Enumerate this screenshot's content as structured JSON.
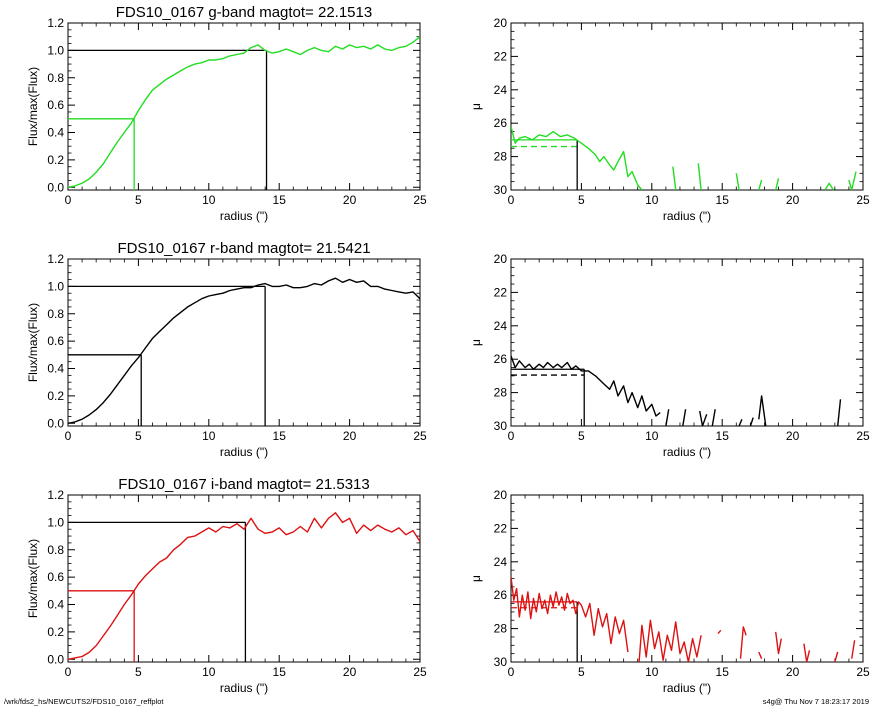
{
  "footer": {
    "path": "/wrk/fds2_hs/NEWCUTS2/FDS10_0167_reffplot",
    "stamp": "s4g@  Thu Nov  7 18:23:17 2019"
  },
  "chart_data": [
    {
      "type": "line",
      "panel": "g-growth",
      "title": "FDS10_0167 g-band  magtot=      22.1513",
      "xlabel": "radius (\")",
      "ylabel": "Flux/max(Flux)",
      "xlim": [
        0,
        25
      ],
      "ylim": [
        -0.02,
        1.2
      ],
      "xticks": [
        0,
        5,
        10,
        15,
        20,
        25
      ],
      "yticks": [
        0.0,
        0.2,
        0.4,
        0.6,
        0.8,
        1.0,
        1.2
      ],
      "ytick_labels": [
        "0.0",
        "0.2",
        "0.4",
        "0.6",
        "0.8",
        "1.0",
        "1.2"
      ],
      "color": "#22dd22",
      "r_half": 4.7,
      "r_total": 14.1,
      "series": [
        {
          "x": [
            0,
            0.5,
            1,
            1.5,
            2,
            2.5,
            3,
            3.5,
            4,
            4.5,
            5,
            5.5,
            6,
            6.5,
            7,
            7.5,
            8,
            8.5,
            9,
            9.5,
            10,
            10.5,
            11,
            11.5,
            12,
            12.5,
            13,
            13.5,
            14,
            14.5,
            15,
            15.5,
            16,
            16.5,
            17,
            17.5,
            18,
            18.5,
            19,
            19.5,
            20,
            20.5,
            21,
            21.5,
            22,
            22.5,
            23,
            23.5,
            24,
            24.5,
            25
          ],
          "y": [
            0,
            0.01,
            0.03,
            0.06,
            0.11,
            0.17,
            0.25,
            0.33,
            0.4,
            0.47,
            0.56,
            0.64,
            0.71,
            0.75,
            0.79,
            0.82,
            0.85,
            0.88,
            0.9,
            0.91,
            0.93,
            0.93,
            0.94,
            0.96,
            0.97,
            0.98,
            1.02,
            1.04,
            1.0,
            0.98,
            0.99,
            1.01,
            0.99,
            0.97,
            1.0,
            1.02,
            1.0,
            0.99,
            1.03,
            1.01,
            1.04,
            1.02,
            1.03,
            1.01,
            1.04,
            1.01,
            1.0,
            1.02,
            1.03,
            1.06,
            1.1
          ]
        }
      ]
    },
    {
      "type": "line",
      "panel": "g-profile",
      "xlabel": "radius (\")",
      "ylabel": "μ",
      "xlim": [
        0,
        25
      ],
      "ylim": [
        30,
        20
      ],
      "xticks": [
        0,
        5,
        10,
        15,
        20,
        25
      ],
      "yticks": [
        20,
        22,
        24,
        26,
        28,
        30
      ],
      "color": "#22dd22",
      "mu_e": 27.4,
      "mu_mean": 27.0,
      "r_e": 4.7,
      "series": [
        {
          "x": [
            0,
            0.3,
            0.6,
            1,
            1.5,
            2,
            2.5,
            3,
            3.5,
            4,
            4.5,
            5,
            5.5,
            6,
            6.3,
            6.6,
            7,
            7.3,
            7.6,
            8,
            8.3,
            8.6,
            9,
            9.3
          ],
          "y": [
            26.2,
            27.2,
            26.9,
            26.8,
            27.0,
            26.7,
            26.8,
            26.5,
            26.8,
            26.7,
            26.9,
            27.2,
            27.5,
            27.9,
            28.3,
            28.0,
            28.5,
            28.8,
            28.3,
            27.7,
            29.2,
            28.9,
            29.7,
            30
          ]
        },
        {
          "x": [
            11.5,
            11.7
          ],
          "y": [
            28.6,
            30
          ]
        },
        {
          "x": [
            13.3,
            13.5
          ],
          "y": [
            28.4,
            30
          ]
        },
        {
          "x": [
            16.0,
            16.2
          ],
          "y": [
            29.0,
            30
          ]
        },
        {
          "x": [
            17.6,
            17.8
          ],
          "y": [
            30,
            29.4
          ]
        },
        {
          "x": [
            18.8,
            19.0
          ],
          "y": [
            30,
            29.3
          ]
        },
        {
          "x": [
            22.3,
            22.6,
            22.9
          ],
          "y": [
            30,
            29.6,
            30
          ]
        },
        {
          "x": [
            24.0,
            24.2,
            24.5
          ],
          "y": [
            29.4,
            30,
            28.9
          ]
        }
      ]
    },
    {
      "type": "line",
      "panel": "r-growth",
      "title": "FDS10_0167 r-band  magtot=      21.5421",
      "xlabel": "radius (\")",
      "ylabel": "Flux/max(Flux)",
      "xlim": [
        0,
        25
      ],
      "ylim": [
        -0.02,
        1.2
      ],
      "xticks": [
        0,
        5,
        10,
        15,
        20,
        25
      ],
      "yticks": [
        0.0,
        0.2,
        0.4,
        0.6,
        0.8,
        1.0,
        1.2
      ],
      "ytick_labels": [
        "0.0",
        "0.2",
        "0.4",
        "0.6",
        "0.8",
        "1.0",
        "1.2"
      ],
      "color": "#000000",
      "r_half": 5.2,
      "r_total": 14.0,
      "series": [
        {
          "x": [
            0,
            0.5,
            1,
            1.5,
            2,
            2.5,
            3,
            3.5,
            4,
            4.5,
            5,
            5.5,
            6,
            6.5,
            7,
            7.5,
            8,
            8.5,
            9,
            9.5,
            10,
            10.5,
            11,
            11.5,
            12,
            12.5,
            13,
            13.5,
            14,
            14.5,
            15,
            15.5,
            16,
            16.5,
            17,
            17.5,
            18,
            18.5,
            19,
            19.5,
            20,
            20.5,
            21,
            21.5,
            22,
            22.5,
            23,
            23.5,
            24,
            24.5,
            25
          ],
          "y": [
            0,
            0.01,
            0.03,
            0.06,
            0.1,
            0.15,
            0.21,
            0.28,
            0.35,
            0.42,
            0.48,
            0.55,
            0.62,
            0.67,
            0.72,
            0.77,
            0.81,
            0.85,
            0.88,
            0.91,
            0.93,
            0.94,
            0.95,
            0.97,
            0.98,
            0.99,
            0.99,
            1.01,
            1.02,
            1.0,
            1.0,
            1.01,
            0.99,
            0.99,
            1.0,
            1.02,
            1.01,
            1.04,
            1.06,
            1.03,
            1.05,
            1.03,
            1.04,
            1.0,
            1.0,
            0.98,
            0.97,
            0.96,
            0.95,
            0.96,
            0.91
          ]
        }
      ]
    },
    {
      "type": "line",
      "panel": "r-profile",
      "xlabel": "radius (\")",
      "ylabel": "μ",
      "xlim": [
        0,
        25
      ],
      "ylim": [
        30,
        20
      ],
      "xticks": [
        0,
        5,
        10,
        15,
        20,
        25
      ],
      "yticks": [
        20,
        22,
        24,
        26,
        28,
        30
      ],
      "color": "#000000",
      "mu_e": 26.95,
      "mu_mean": 26.6,
      "r_e": 5.2,
      "series": [
        {
          "x": [
            0,
            0.3,
            0.6,
            1,
            1.3,
            1.6,
            2,
            2.3,
            2.6,
            3,
            3.3,
            3.6,
            4,
            4.3,
            4.6,
            5,
            5.5,
            6,
            6.5,
            7,
            7.3,
            7.6,
            8,
            8.3,
            8.6,
            9,
            9.3,
            9.6,
            10,
            10.3,
            10.6
          ],
          "y": [
            25.8,
            26.5,
            26.1,
            26.5,
            26.3,
            26.6,
            26.3,
            26.5,
            26.2,
            26.5,
            26.3,
            26.5,
            26.2,
            26.6,
            26.4,
            26.7,
            26.7,
            27.0,
            27.4,
            27.8,
            27.3,
            28.2,
            27.6,
            28.6,
            28.0,
            28.9,
            28.2,
            29.1,
            28.7,
            29.4,
            29.2
          ]
        },
        {
          "x": [
            11.0,
            11.2
          ],
          "y": [
            30,
            29.0
          ]
        },
        {
          "x": [
            12.2,
            12.4
          ],
          "y": [
            30,
            29.0
          ]
        },
        {
          "x": [
            13.4,
            13.6,
            13.9
          ],
          "y": [
            29.1,
            30,
            29.3
          ]
        },
        {
          "x": [
            14.3,
            14.5
          ],
          "y": [
            30,
            29.0
          ]
        },
        {
          "x": [
            16.2,
            16.4
          ],
          "y": [
            30,
            29.6
          ]
        },
        {
          "x": [
            17.0,
            17.2
          ],
          "y": [
            30,
            29.5
          ]
        },
        {
          "x": [
            17.6,
            17.8,
            18.1
          ],
          "y": [
            29.6,
            28.2,
            30
          ]
        },
        {
          "x": [
            23.2,
            23.4
          ],
          "y": [
            30,
            28.4
          ]
        }
      ]
    },
    {
      "type": "line",
      "panel": "i-growth",
      "title": "FDS10_0167 i-band  magtot=      21.5313",
      "xlabel": "radius (\")",
      "ylabel": "Flux/max(Flux)",
      "xlim": [
        0,
        25
      ],
      "ylim": [
        -0.02,
        1.2
      ],
      "xticks": [
        0,
        5,
        10,
        15,
        20,
        25
      ],
      "yticks": [
        0.0,
        0.2,
        0.4,
        0.6,
        0.8,
        1.0,
        1.2
      ],
      "ytick_labels": [
        "0.0",
        "0.2",
        "0.4",
        "0.6",
        "0.8",
        "1.0",
        "1.2"
      ],
      "color": "#dd1111",
      "r_half": 4.7,
      "r_total": 12.6,
      "series": [
        {
          "x": [
            0,
            0.5,
            1,
            1.5,
            2,
            2.5,
            3,
            3.5,
            4,
            4.5,
            5,
            5.5,
            6,
            6.5,
            7,
            7.5,
            8,
            8.5,
            9,
            9.5,
            10,
            10.5,
            11,
            11.5,
            12,
            12.5,
            13,
            13.5,
            14,
            14.5,
            15,
            15.5,
            16,
            16.5,
            17,
            17.5,
            18,
            18.5,
            19,
            19.5,
            20,
            20.5,
            21,
            21.5,
            22,
            22.5,
            23,
            23.5,
            24,
            24.5,
            25
          ],
          "y": [
            0,
            0.01,
            0.02,
            0.05,
            0.1,
            0.17,
            0.24,
            0.32,
            0.4,
            0.47,
            0.55,
            0.61,
            0.66,
            0.71,
            0.74,
            0.8,
            0.84,
            0.89,
            0.9,
            0.93,
            0.96,
            0.93,
            0.97,
            0.96,
            0.99,
            0.95,
            1.03,
            0.95,
            0.92,
            0.93,
            0.96,
            0.91,
            0.93,
            0.97,
            0.93,
            1.03,
            0.96,
            1.03,
            1.07,
            1.0,
            1.03,
            0.92,
            0.98,
            0.94,
            0.98,
            0.95,
            0.93,
            0.96,
            0.91,
            0.94,
            0.86
          ]
        }
      ]
    },
    {
      "type": "line",
      "panel": "i-profile",
      "xlabel": "radius (\")",
      "ylabel": "μ",
      "xlim": [
        0,
        25
      ],
      "ylim": [
        30,
        20
      ],
      "xticks": [
        0,
        5,
        10,
        15,
        20,
        25
      ],
      "yticks": [
        20,
        22,
        24,
        26,
        28,
        30
      ],
      "color": "#dd1111",
      "mu_e": 26.75,
      "mu_mean": 26.4,
      "r_e": 4.7,
      "series": [
        {
          "x": [
            0,
            0.2,
            0.4,
            0.6,
            0.8,
            1,
            1.2,
            1.4,
            1.6,
            1.8,
            2,
            2.2,
            2.4,
            2.6,
            2.8,
            3,
            3.2,
            3.4,
            3.6,
            3.8,
            4,
            4.2,
            4.4,
            4.6,
            4.8,
            5,
            5.3,
            5.6,
            5.9,
            6.2,
            6.5,
            6.8,
            7.1,
            7.4,
            7.7,
            8,
            8.3
          ],
          "y": [
            24.9,
            26.3,
            25.6,
            27.3,
            26.0,
            26.9,
            25.8,
            27.4,
            26.2,
            27.0,
            25.9,
            26.8,
            26.3,
            27.1,
            26.0,
            26.7,
            25.8,
            26.6,
            26.1,
            26.9,
            25.9,
            26.5,
            26.3,
            27.1,
            26.4,
            26.6,
            27.3,
            26.5,
            28.4,
            26.8,
            27.9,
            27.1,
            28.9,
            27.3,
            28.3,
            27.5,
            29.4
          ]
        },
        {
          "x": [
            9.1,
            9.3,
            9.6,
            9.9,
            10.2,
            10.5,
            10.8,
            11.1,
            11.4,
            11.7,
            12.0,
            12.3,
            12.6,
            12.9,
            13.2,
            13.5
          ],
          "y": [
            30,
            27.8,
            29.7,
            27.5,
            29.2,
            28.2,
            29.9,
            28.4,
            29.3,
            27.6,
            29.5,
            28.8,
            30,
            28.6,
            29.7,
            28.4
          ]
        },
        {
          "x": [
            14.7,
            14.9
          ],
          "y": [
            28.3,
            28.1
          ]
        },
        {
          "x": [
            16.3,
            16.5,
            16.7
          ],
          "y": [
            29.8,
            27.9,
            28.4
          ]
        },
        {
          "x": [
            17.6,
            17.8
          ],
          "y": [
            29.4,
            29.8
          ]
        },
        {
          "x": [
            18.8,
            19.0,
            19.2
          ],
          "y": [
            28.2,
            29.5,
            28.6
          ]
        },
        {
          "x": [
            20.8,
            21.0,
            21.2
          ],
          "y": [
            28.9,
            30,
            29.3
          ]
        },
        {
          "x": [
            23.0,
            23.2
          ],
          "y": [
            30,
            29.4
          ]
        },
        {
          "x": [
            24.2,
            24.4
          ],
          "y": [
            29.8,
            28.7
          ]
        }
      ]
    }
  ]
}
